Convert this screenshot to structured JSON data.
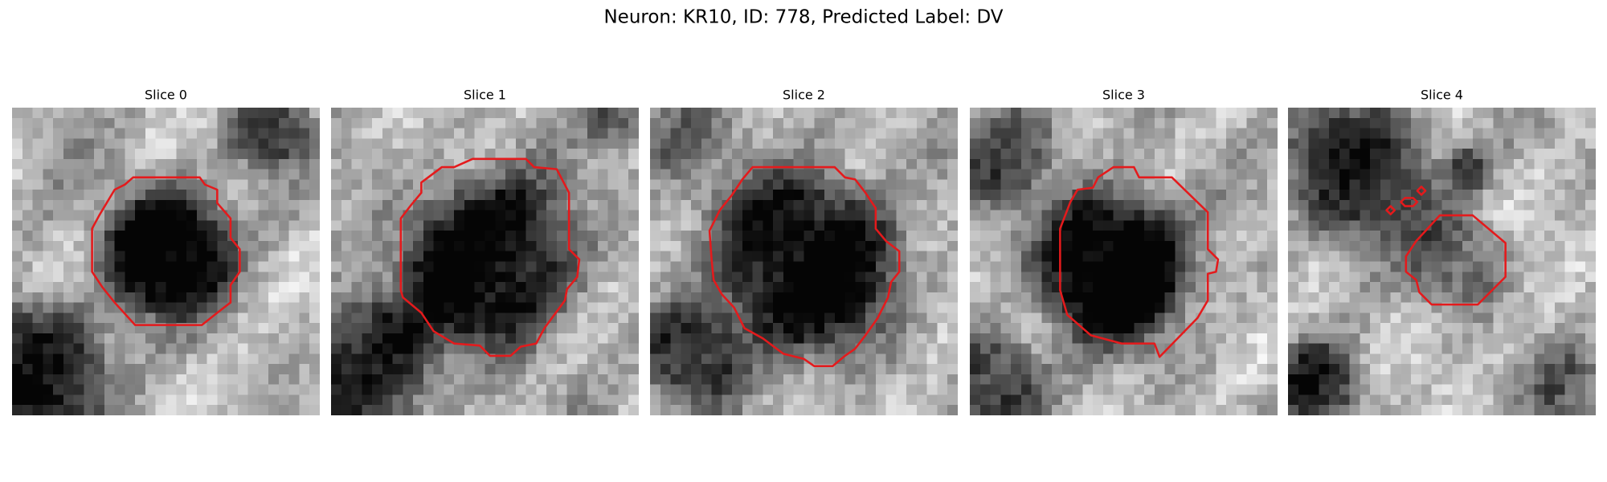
{
  "title": "Neuron: KR10, ID: 778, Predicted Label: DV",
  "panels": [
    {
      "title": "Slice 0"
    },
    {
      "title": "Slice 1"
    },
    {
      "title": "Slice 2"
    },
    {
      "title": "Slice 3"
    },
    {
      "title": "Slice 4"
    }
  ]
}
